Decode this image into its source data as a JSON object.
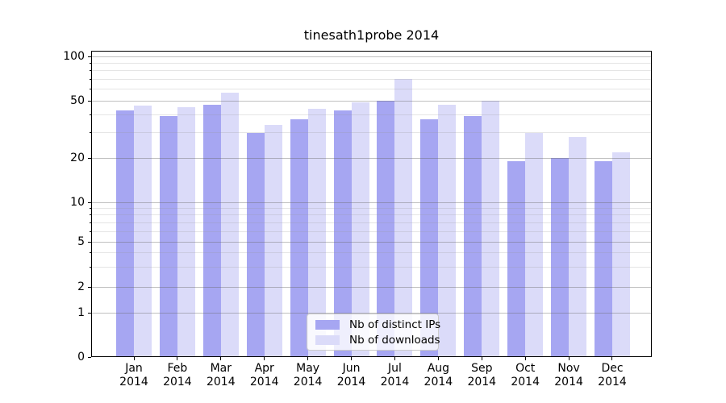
{
  "title": "tinesath1probe 2014",
  "legend": {
    "entries": [
      {
        "label": "Nb of distinct IPs"
      },
      {
        "label": "Nb of downloads"
      }
    ]
  },
  "chart_data": {
    "type": "bar",
    "title": "tinesath1probe 2014",
    "categories": [
      "Jan",
      "Feb",
      "Mar",
      "Apr",
      "May",
      "Jun",
      "Jul",
      "Aug",
      "Sep",
      "Oct",
      "Nov",
      "Dec"
    ],
    "category_year_line": "2014",
    "series": [
      {
        "name": "Nb of distinct IPs",
        "color": "#a6a6f2",
        "values": [
          43,
          39,
          47,
          30,
          37,
          43,
          50,
          37,
          39,
          19,
          20,
          19
        ]
      },
      {
        "name": "Nb of downloads",
        "color": "#dbdbf9",
        "values": [
          46,
          45,
          57,
          34,
          44,
          49,
          70,
          47,
          50,
          30,
          28,
          22
        ]
      }
    ],
    "xlabel": "",
    "ylabel": "",
    "yscale": "symlog",
    "y_ticks": [
      0,
      1,
      2,
      5,
      10,
      20,
      50,
      100
    ],
    "y_minor_ticks": [
      3,
      4,
      6,
      7,
      8,
      9,
      30,
      40,
      60,
      70,
      80,
      90
    ],
    "ylim": [
      0,
      110
    ],
    "grid": "major and minor horizontal gridlines drawn over bars",
    "legend_position": "lower center"
  }
}
